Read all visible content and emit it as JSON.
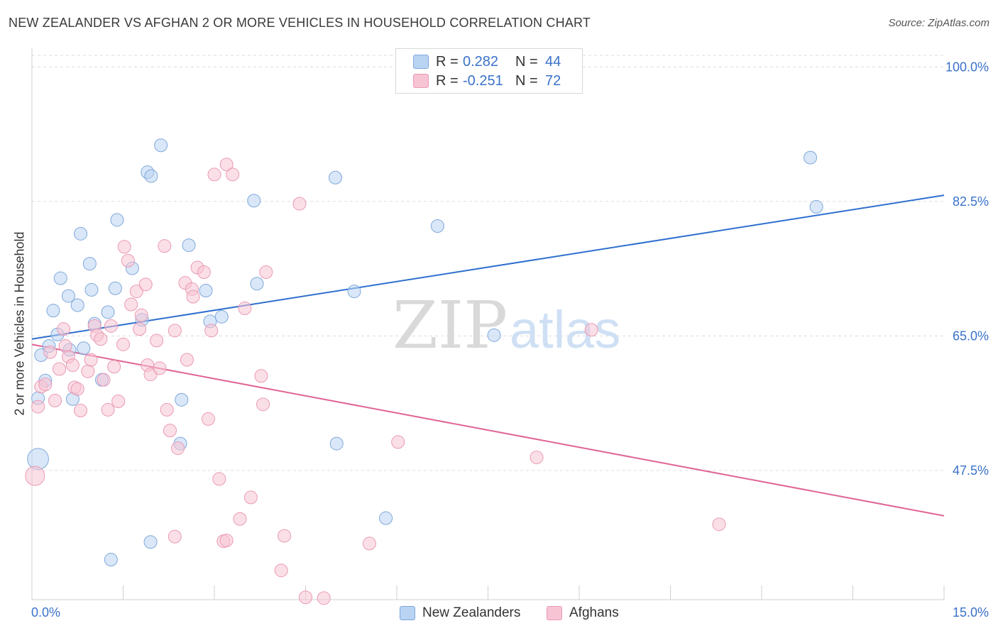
{
  "title": "NEW ZEALANDER VS AFGHAN 2 OR MORE VEHICLES IN HOUSEHOLD CORRELATION CHART",
  "source": "Source: ZipAtlas.com",
  "watermark": {
    "zip": "ZIP",
    "atlas": "atlas"
  },
  "legend_top": [
    {
      "r_label": "R =",
      "r_value": "0.282",
      "n_label": "N =",
      "n_value": "44"
    },
    {
      "r_label": "R =",
      "r_value": "-0.251",
      "n_label": "N =",
      "n_value": "72"
    }
  ],
  "legend_bottom": [
    {
      "label": "New Zealanders"
    },
    {
      "label": "Afghans"
    }
  ],
  "colors": {
    "blue_fill": "#b9d3f3",
    "blue_stroke": "#7fa8da",
    "blue_line": "#2f6fcf",
    "pink_fill": "#f7c4d4",
    "pink_stroke": "#e99ab4",
    "pink_line": "#e06595",
    "tick_label": "#3a72c9"
  },
  "chart_data": {
    "type": "scatter",
    "title": "NEW ZEALANDER VS AFGHAN 2 OR MORE VEHICLES IN HOUSEHOLD CORRELATION CHART",
    "xlabel": "",
    "ylabel": "2 or more Vehicles in Household",
    "xlim": [
      0,
      15
    ],
    "ylim": [
      30.7,
      101.5
    ],
    "x_tick_labels": [
      "0.0%",
      "15.0%"
    ],
    "y_ticks": [
      47.5,
      65.0,
      82.5,
      100.0
    ],
    "y_tick_labels": [
      "47.5%",
      "65.0%",
      "82.5%",
      "100.0%"
    ],
    "grid": true,
    "legend_position": "top-center",
    "series": [
      {
        "name": "New Zealanders",
        "trend": {
          "x": [
            0,
            15
          ],
          "y": [
            64.6,
            83.3
          ]
        },
        "points": [
          {
            "x": 0.1,
            "y": 49.0,
            "s": 3
          },
          {
            "x": 0.1,
            "y": 56.9
          },
          {
            "x": 0.15,
            "y": 62.5
          },
          {
            "x": 0.22,
            "y": 59.2
          },
          {
            "x": 0.28,
            "y": 63.7
          },
          {
            "x": 0.35,
            "y": 68.3
          },
          {
            "x": 0.42,
            "y": 65.2
          },
          {
            "x": 0.47,
            "y": 72.5
          },
          {
            "x": 0.6,
            "y": 70.2
          },
          {
            "x": 0.62,
            "y": 63.2
          },
          {
            "x": 0.67,
            "y": 56.8
          },
          {
            "x": 0.75,
            "y": 69.0
          },
          {
            "x": 0.8,
            "y": 78.3
          },
          {
            "x": 0.85,
            "y": 63.4
          },
          {
            "x": 0.95,
            "y": 74.4
          },
          {
            "x": 0.98,
            "y": 71.0
          },
          {
            "x": 1.03,
            "y": 66.6
          },
          {
            "x": 1.15,
            "y": 59.3
          },
          {
            "x": 1.25,
            "y": 68.1
          },
          {
            "x": 1.37,
            "y": 71.2
          },
          {
            "x": 1.4,
            "y": 80.1
          },
          {
            "x": 1.65,
            "y": 73.8
          },
          {
            "x": 1.81,
            "y": 67.1
          },
          {
            "x": 1.9,
            "y": 86.3
          },
          {
            "x": 1.96,
            "y": 85.8
          },
          {
            "x": 2.12,
            "y": 89.8
          },
          {
            "x": 2.44,
            "y": 51.0
          },
          {
            "x": 2.46,
            "y": 56.7
          },
          {
            "x": 2.58,
            "y": 76.8
          },
          {
            "x": 2.86,
            "y": 70.9
          },
          {
            "x": 2.93,
            "y": 66.9
          },
          {
            "x": 3.12,
            "y": 67.5
          },
          {
            "x": 3.65,
            "y": 82.6
          },
          {
            "x": 3.7,
            "y": 71.8
          },
          {
            "x": 4.99,
            "y": 85.6
          },
          {
            "x": 5.01,
            "y": 51.0
          },
          {
            "x": 5.3,
            "y": 70.8
          },
          {
            "x": 5.82,
            "y": 41.3
          },
          {
            "x": 6.67,
            "y": 79.3
          },
          {
            "x": 7.6,
            "y": 65.1
          },
          {
            "x": 12.8,
            "y": 88.2
          },
          {
            "x": 12.9,
            "y": 81.8
          },
          {
            "x": 1.3,
            "y": 35.9
          },
          {
            "x": 1.95,
            "y": 38.2
          }
        ]
      },
      {
        "name": "Afghans",
        "trend": {
          "x": [
            0,
            15
          ],
          "y": [
            63.9,
            41.6
          ]
        },
        "points": [
          {
            "x": 0.05,
            "y": 46.8,
            "s": 2
          },
          {
            "x": 0.1,
            "y": 55.8
          },
          {
            "x": 0.15,
            "y": 58.4
          },
          {
            "x": 0.22,
            "y": 58.7
          },
          {
            "x": 0.3,
            "y": 62.9
          },
          {
            "x": 0.38,
            "y": 56.6
          },
          {
            "x": 0.45,
            "y": 60.7
          },
          {
            "x": 0.52,
            "y": 65.9
          },
          {
            "x": 0.55,
            "y": 63.7
          },
          {
            "x": 0.6,
            "y": 62.3
          },
          {
            "x": 0.67,
            "y": 61.2
          },
          {
            "x": 0.7,
            "y": 58.3
          },
          {
            "x": 0.75,
            "y": 58.1
          },
          {
            "x": 0.8,
            "y": 55.3
          },
          {
            "x": 0.92,
            "y": 60.4
          },
          {
            "x": 0.97,
            "y": 61.9
          },
          {
            "x": 1.03,
            "y": 66.3
          },
          {
            "x": 1.07,
            "y": 65.1
          },
          {
            "x": 1.13,
            "y": 64.6
          },
          {
            "x": 1.18,
            "y": 59.3
          },
          {
            "x": 1.25,
            "y": 55.4
          },
          {
            "x": 1.3,
            "y": 66.3
          },
          {
            "x": 1.35,
            "y": 61.0
          },
          {
            "x": 1.42,
            "y": 56.5
          },
          {
            "x": 1.5,
            "y": 63.9
          },
          {
            "x": 1.52,
            "y": 76.6
          },
          {
            "x": 1.58,
            "y": 74.8
          },
          {
            "x": 1.63,
            "y": 69.1
          },
          {
            "x": 1.72,
            "y": 70.8
          },
          {
            "x": 1.77,
            "y": 65.9
          },
          {
            "x": 1.8,
            "y": 67.7
          },
          {
            "x": 1.87,
            "y": 71.7
          },
          {
            "x": 1.9,
            "y": 61.2
          },
          {
            "x": 1.95,
            "y": 60.0
          },
          {
            "x": 2.05,
            "y": 64.4
          },
          {
            "x": 2.1,
            "y": 60.8
          },
          {
            "x": 2.18,
            "y": 76.7
          },
          {
            "x": 2.22,
            "y": 55.4
          },
          {
            "x": 2.27,
            "y": 52.7
          },
          {
            "x": 2.35,
            "y": 65.7
          },
          {
            "x": 2.4,
            "y": 50.4
          },
          {
            "x": 2.52,
            "y": 71.9
          },
          {
            "x": 2.55,
            "y": 61.9
          },
          {
            "x": 2.63,
            "y": 71.1
          },
          {
            "x": 2.65,
            "y": 70.1
          },
          {
            "x": 2.72,
            "y": 73.9
          },
          {
            "x": 2.83,
            "y": 73.3
          },
          {
            "x": 2.9,
            "y": 54.2
          },
          {
            "x": 2.95,
            "y": 65.7
          },
          {
            "x": 3.0,
            "y": 86.0
          },
          {
            "x": 3.08,
            "y": 46.4
          },
          {
            "x": 3.2,
            "y": 87.3
          },
          {
            "x": 3.3,
            "y": 86.0
          },
          {
            "x": 3.42,
            "y": 41.2
          },
          {
            "x": 3.5,
            "y": 68.6
          },
          {
            "x": 3.6,
            "y": 44.0
          },
          {
            "x": 3.77,
            "y": 59.8
          },
          {
            "x": 3.8,
            "y": 56.1
          },
          {
            "x": 3.85,
            "y": 73.3
          },
          {
            "x": 4.4,
            "y": 82.2
          },
          {
            "x": 6.02,
            "y": 51.2
          },
          {
            "x": 8.3,
            "y": 49.2
          },
          {
            "x": 9.2,
            "y": 65.8
          },
          {
            "x": 11.3,
            "y": 40.5
          },
          {
            "x": 2.35,
            "y": 38.9
          },
          {
            "x": 3.15,
            "y": 38.3
          },
          {
            "x": 4.1,
            "y": 34.5
          },
          {
            "x": 4.15,
            "y": 39.0
          },
          {
            "x": 4.5,
            "y": 31.0
          },
          {
            "x": 4.8,
            "y": 30.9
          },
          {
            "x": 5.55,
            "y": 38.0
          },
          {
            "x": 3.2,
            "y": 38.4
          }
        ]
      }
    ]
  }
}
